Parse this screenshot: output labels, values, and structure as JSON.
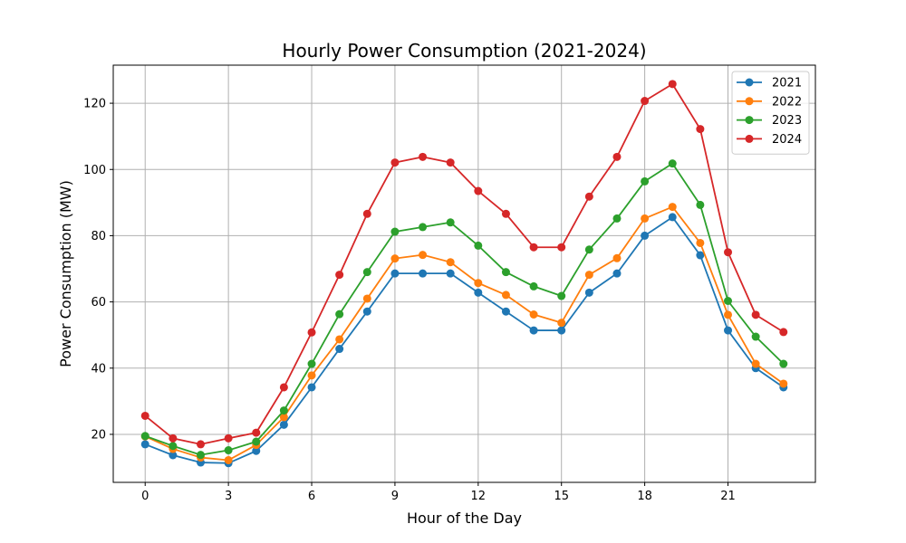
{
  "chart_data": {
    "type": "line",
    "title": "Hourly Power Consumption (2021-2024)",
    "xlabel": "Hour of the Day",
    "ylabel": "Power Consumption (MW)",
    "x": [
      0,
      1,
      2,
      3,
      4,
      5,
      6,
      7,
      8,
      9,
      10,
      11,
      12,
      13,
      14,
      15,
      16,
      17,
      18,
      19,
      20,
      21,
      22,
      23
    ],
    "xlim": [
      -1.15,
      24.15
    ],
    "ylim": [
      5.5,
      131.5
    ],
    "xticks": [
      0,
      3,
      6,
      9,
      12,
      15,
      18,
      21
    ],
    "yticks": [
      20,
      40,
      60,
      80,
      100,
      120
    ],
    "grid": true,
    "legend_position": "top-right",
    "series": [
      {
        "name": "2021",
        "color": "#1f77b4",
        "values": [
          17,
          13.7,
          11.5,
          11.3,
          15,
          22.9,
          34.2,
          45.8,
          57.1,
          68.6,
          68.6,
          68.6,
          62.8,
          57.1,
          51.4,
          51.4,
          62.8,
          68.6,
          80,
          85.6,
          74.1,
          51.4,
          40,
          34.2
        ]
      },
      {
        "name": "2022",
        "color": "#ff7f0e",
        "values": [
          19.4,
          15.6,
          13,
          12.2,
          16.8,
          25.2,
          37.8,
          48.7,
          61,
          73.1,
          74.2,
          72,
          65.7,
          62.1,
          56.2,
          53.7,
          68.2,
          73.2,
          85.2,
          88.7,
          77.8,
          56.1,
          41.3,
          35.3
        ]
      },
      {
        "name": "2023",
        "color": "#2ca02c",
        "values": [
          19.5,
          16.5,
          13.8,
          15.2,
          17.8,
          27.2,
          41.3,
          56.3,
          69,
          81.2,
          82.6,
          84,
          77,
          69,
          64.7,
          61.8,
          75.8,
          85.2,
          96.4,
          101.8,
          89.3,
          60.3,
          49.5,
          41.3
        ]
      },
      {
        "name": "2024",
        "color": "#d62728",
        "values": [
          25.6,
          18.8,
          17,
          18.8,
          20.5,
          34.2,
          50.8,
          68.2,
          86.6,
          102.1,
          103.8,
          102.1,
          93.5,
          86.6,
          76.5,
          76.5,
          91.8,
          103.8,
          120.7,
          125.8,
          112.2,
          75,
          56.1,
          50.9
        ]
      }
    ]
  }
}
